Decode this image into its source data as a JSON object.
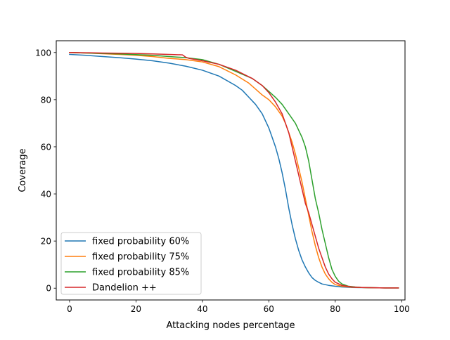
{
  "chart_data": {
    "type": "line",
    "title": "",
    "xlabel": "Attacking nodes percentage",
    "ylabel": "Coverage",
    "xlim": [
      -4,
      101
    ],
    "ylim": [
      -5,
      105
    ],
    "xticks": [
      0,
      20,
      40,
      60,
      80,
      100
    ],
    "yticks": [
      0,
      20,
      40,
      60,
      80,
      100
    ],
    "xtick_labels": [
      "0",
      "20",
      "40",
      "60",
      "80",
      "100"
    ],
    "ytick_labels": [
      "0",
      "20",
      "40",
      "60",
      "80",
      "100"
    ],
    "grid": false,
    "legend_position": "lower-left",
    "series": [
      {
        "name": "fixed probability 60%",
        "color": "#1f77b4",
        "x": [
          0,
          5,
          10,
          15,
          20,
          25,
          30,
          35,
          40,
          45,
          50,
          52,
          54,
          56,
          58,
          60,
          61,
          62,
          63,
          64,
          65,
          66,
          67,
          68,
          69,
          70,
          71,
          72,
          73,
          74,
          75,
          76,
          78,
          80,
          82,
          85,
          90,
          95,
          99
        ],
        "y": [
          99.2,
          98.8,
          98.3,
          97.8,
          97.2,
          96.5,
          95.5,
          94.2,
          92.5,
          90,
          86,
          84,
          81,
          78,
          74,
          68,
          64,
          60,
          55,
          49,
          42,
          34,
          27,
          21,
          16,
          12,
          9,
          6.5,
          4.5,
          3.3,
          2.5,
          1.8,
          1.2,
          0.8,
          0.5,
          0.3,
          0.2,
          0.1,
          0.1
        ]
      },
      {
        "name": "fixed probability 75%",
        "color": "#ff7f0e",
        "x": [
          0,
          5,
          10,
          15,
          20,
          25,
          30,
          35,
          40,
          45,
          50,
          54,
          58,
          60,
          62,
          64,
          65,
          66,
          67,
          68,
          69,
          70,
          71,
          72,
          73,
          74,
          75,
          76,
          77,
          78,
          79,
          80,
          82,
          85,
          90,
          95,
          99
        ],
        "y": [
          100,
          99.8,
          99.5,
          99.2,
          98.8,
          98.3,
          97.5,
          97,
          96,
          94,
          90.5,
          87,
          82,
          80,
          77,
          73,
          70,
          66,
          62,
          57,
          51,
          45,
          38,
          31,
          24,
          18,
          13,
          9,
          6,
          4,
          2.5,
          1.5,
          0.8,
          0.4,
          0.2,
          0.1,
          0.1
        ]
      },
      {
        "name": "fixed probability 85%",
        "color": "#2ca02c",
        "x": [
          0,
          5,
          10,
          15,
          20,
          25,
          30,
          35,
          40,
          45,
          50,
          55,
          58,
          60,
          62,
          64,
          66,
          68,
          70,
          71,
          72,
          73,
          74,
          75,
          76,
          77,
          78,
          79,
          80,
          81,
          82,
          84,
          86,
          88,
          90,
          95,
          99
        ],
        "y": [
          100,
          99.8,
          99.6,
          99.4,
          99.1,
          98.8,
          98.3,
          97.8,
          97,
          95,
          92,
          89,
          86,
          83.5,
          81,
          78,
          74,
          70,
          64,
          60,
          54,
          46,
          38,
          32,
          25,
          19,
          13,
          8,
          5,
          3,
          1.8,
          0.8,
          0.5,
          0.3,
          0.2,
          0.1,
          0.1
        ]
      },
      {
        "name": "Dandelion ++",
        "color": "#d62728",
        "x": [
          0,
          5,
          10,
          15,
          20,
          25,
          30,
          34,
          35,
          36,
          40,
          45,
          50,
          55,
          58,
          60,
          62,
          64,
          65,
          66,
          67,
          68,
          69,
          70,
          71,
          72,
          73,
          74,
          75,
          76,
          77,
          78,
          79,
          80,
          82,
          85,
          88,
          90,
          95,
          99
        ],
        "y": [
          100,
          99.9,
          99.8,
          99.7,
          99.6,
          99.4,
          99.2,
          99,
          98,
          97.5,
          96.5,
          95,
          92.5,
          89,
          86,
          83,
          79,
          74,
          70,
          66,
          60,
          54,
          48,
          42,
          36,
          32,
          27,
          22,
          17,
          13,
          9,
          6,
          4,
          2.5,
          1.2,
          0.5,
          0.3,
          0.2,
          0.1,
          0.1
        ]
      }
    ]
  }
}
